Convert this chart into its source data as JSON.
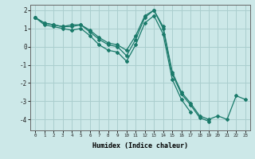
{
  "title": "",
  "xlabel": "Humidex (Indice chaleur)",
  "ylabel": "",
  "bg_color": "#cce8e8",
  "grid_color": "#aacece",
  "line_color": "#1a7a6a",
  "x_values": [
    0,
    1,
    2,
    3,
    4,
    5,
    6,
    7,
    8,
    9,
    10,
    11,
    12,
    13,
    14,
    15,
    16,
    17,
    18,
    19,
    20,
    21,
    22,
    23
  ],
  "line1": [
    1.6,
    1.3,
    1.2,
    1.1,
    1.1,
    1.2,
    0.9,
    0.5,
    0.2,
    0.1,
    -0.2,
    0.6,
    1.7,
    2.0,
    1.1,
    -1.4,
    -2.5,
    -3.1,
    -3.8,
    -4.0,
    -3.8,
    -4.0,
    -2.7,
    -2.9
  ],
  "line2": [
    1.6,
    1.3,
    1.2,
    1.1,
    1.2,
    1.2,
    0.8,
    0.4,
    0.1,
    0.0,
    -0.5,
    0.4,
    1.6,
    2.0,
    1.0,
    -1.5,
    -2.6,
    -3.2,
    -3.9,
    -4.1,
    null,
    null,
    null,
    null
  ],
  "line3": [
    1.6,
    1.2,
    1.1,
    1.0,
    0.9,
    1.0,
    0.6,
    0.1,
    -0.2,
    -0.3,
    -0.8,
    0.1,
    1.3,
    1.7,
    0.7,
    -1.8,
    -2.9,
    -3.6,
    null,
    null,
    null,
    null,
    null,
    null
  ],
  "ylim": [
    -4.6,
    2.3
  ],
  "xlim": [
    -0.5,
    23.5
  ],
  "yticks": [
    2,
    1,
    0,
    -1,
    -2,
    -3,
    -4
  ],
  "xticks": [
    0,
    1,
    2,
    3,
    4,
    5,
    6,
    7,
    8,
    9,
    10,
    11,
    12,
    13,
    14,
    15,
    16,
    17,
    18,
    19,
    20,
    21,
    22,
    23
  ]
}
